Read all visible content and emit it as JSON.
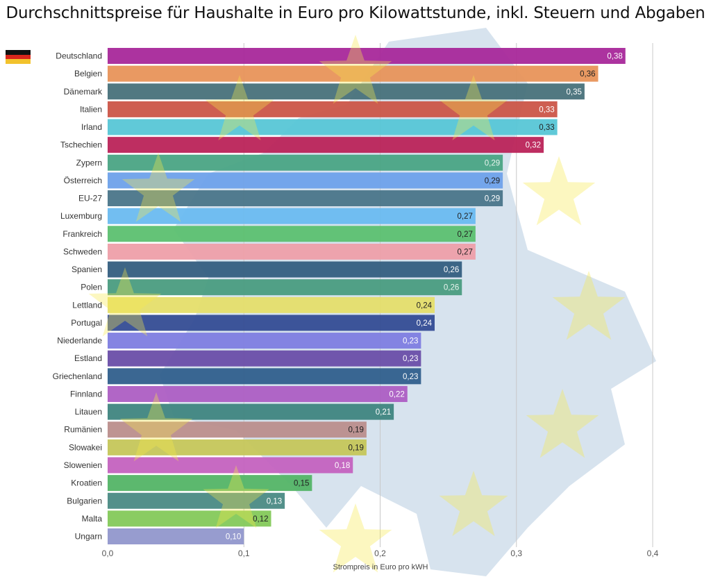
{
  "title": "Durchschnittspreise für Haushalte in Euro pro Kilowattstunde, inkl. Steuern und Abgaben",
  "flag_icon": "germany-flag-icon",
  "chart_data": {
    "type": "bar",
    "orientation": "horizontal",
    "title": "Durchschnittspreise für Haushalte in Euro pro Kilowattstunde, inkl. Steuern und Abgaben",
    "xlabel": "Strompreis in Euro pro kWH",
    "ylabel": "",
    "xlim": [
      0,
      0.4
    ],
    "xticks": [
      "0,0",
      "0,1",
      "0,2",
      "0,3",
      "0,4"
    ],
    "grid": "vertical",
    "categories": [
      "Deutschland",
      "Belgien",
      "Dänemark",
      "Italien",
      "Irland",
      "Tschechien",
      "Zypern",
      "Österreich",
      "EU-27",
      "Luxemburg",
      "Frankreich",
      "Schweden",
      "Spanien",
      "Polen",
      "Lettland",
      "Portugal",
      "Niederlande",
      "Estland",
      "Griechenland",
      "Finnland",
      "Litauen",
      "Rumänien",
      "Slowakei",
      "Slowenien",
      "Kroatien",
      "Bulgarien",
      "Malta",
      "Ungarn"
    ],
    "values": [
      0.38,
      0.36,
      0.35,
      0.33,
      0.33,
      0.32,
      0.29,
      0.29,
      0.29,
      0.27,
      0.27,
      0.27,
      0.26,
      0.26,
      0.24,
      0.24,
      0.23,
      0.23,
      0.23,
      0.22,
      0.21,
      0.19,
      0.19,
      0.18,
      0.15,
      0.13,
      0.12,
      0.1
    ],
    "labels": [
      "0,38",
      "0,36",
      "0,35",
      "0,33",
      "0,33",
      "0,32",
      "0,29",
      "0,29",
      "0,29",
      "0,27",
      "0,27",
      "0,27",
      "0,26",
      "0,26",
      "0,24",
      "0,24",
      "0,23",
      "0,23",
      "0,23",
      "0,22",
      "0,21",
      "0,19",
      "0,19",
      "0,18",
      "0,15",
      "0,13",
      "0,12",
      "0,10"
    ],
    "colors": [
      "#a8289a",
      "#e8935a",
      "#48717a",
      "#cb5548",
      "#57c6d6",
      "#bb2358",
      "#4aa484",
      "#6ea1ea",
      "#4a7589",
      "#6abbf0",
      "#5cc070",
      "#ee9fa9",
      "#345e80",
      "#4a9c7f",
      "#e5de6a",
      "#344c94",
      "#7e7de0",
      "#6a4ea8",
      "#305f8c",
      "#ad5ec3",
      "#3f8580",
      "#bb8e8c",
      "#c5c65a",
      "#c462bf",
      "#53b466",
      "#4a8a84",
      "#84c95a",
      "#9197cc"
    ],
    "label_colors": [
      "#fff",
      "#222",
      "#fff",
      "#fff",
      "#222",
      "#fff",
      "#e8f4ee",
      "#222",
      "#fff",
      "#222",
      "#222",
      "#222",
      "#fff",
      "#e8f4ee",
      "#222",
      "#fff",
      "#fff",
      "#fff",
      "#fff",
      "#fff",
      "#fff",
      "#222",
      "#222",
      "#fff",
      "#222",
      "#fff",
      "#222",
      "#fff"
    ]
  }
}
